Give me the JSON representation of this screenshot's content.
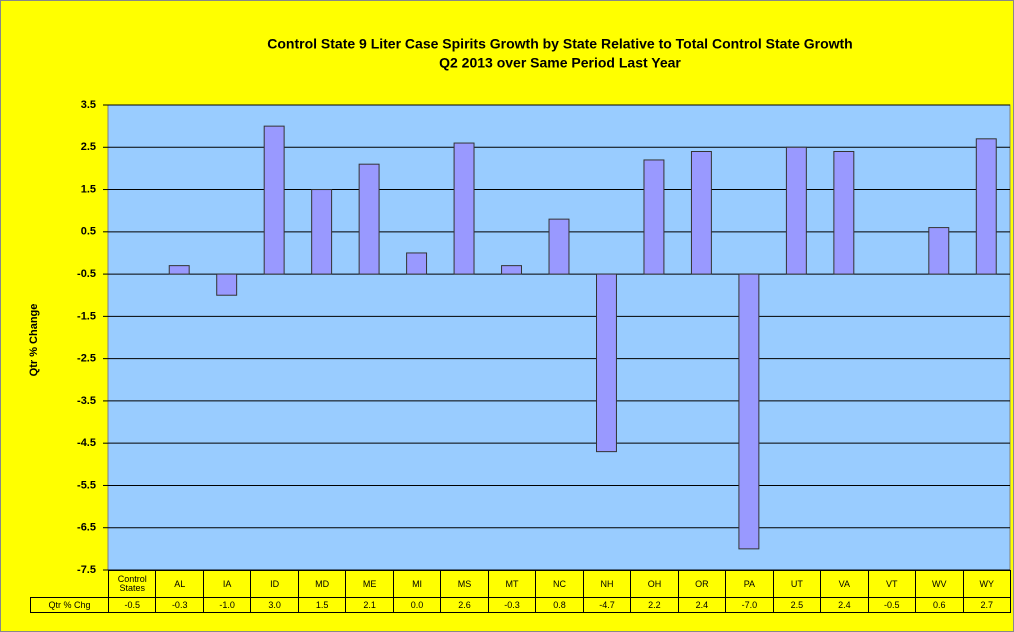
{
  "chart_data": {
    "type": "bar",
    "title": "Control State 9 Liter Case Spirits Growth by State Relative to Total Control State Growth",
    "subtitle": "Q2 2013 over Same Period Last Year",
    "y_label": "Qtr % Change",
    "row_label": "Qtr % Chg",
    "categories": [
      "Control States",
      "AL",
      "IA",
      "ID",
      "MD",
      "ME",
      "MI",
      "MS",
      "MT",
      "NC",
      "NH",
      "OH",
      "OR",
      "PA",
      "UT",
      "VA",
      "VT",
      "WV",
      "WY"
    ],
    "values": [
      -0.5,
      -0.3,
      -1.0,
      3.0,
      1.5,
      2.1,
      0.0,
      2.6,
      -0.3,
      0.8,
      -4.7,
      2.2,
      2.4,
      -7.0,
      2.5,
      2.4,
      -0.5,
      0.6,
      2.7
    ],
    "value_labels": [
      "-0.5",
      "-0.3",
      "-1.0",
      "3.0",
      "1.5",
      "2.1",
      "0.0",
      "2.6",
      "-0.3",
      "0.8",
      "-4.7",
      "2.2",
      "2.4",
      "-7.0",
      "2.5",
      "2.4",
      "-0.5",
      "0.6",
      "2.7"
    ],
    "color": "#9999ff",
    "ylim": [
      -7.5,
      3.5
    ],
    "yticks": [
      3.5,
      2.5,
      1.5,
      0.5,
      -0.5,
      -1.5,
      -2.5,
      -3.5,
      -4.5,
      -5.5,
      -6.5,
      -7.5
    ],
    "grid": true
  }
}
